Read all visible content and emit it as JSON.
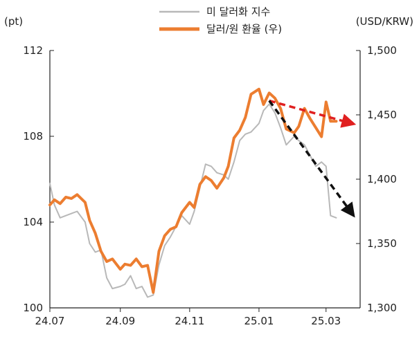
{
  "chart_data": {
    "type": "line",
    "left_unit": "(pt)",
    "right_unit": "(USD/KRW)",
    "x_tick_labels": [
      "24.07",
      "24.09",
      "24.11",
      "25.01",
      "25.03"
    ],
    "x_range": [
      "2024-07-01",
      "2025-03-31"
    ],
    "y_left": {
      "ticks": [
        100,
        104,
        108,
        112
      ],
      "labels": [
        "100",
        "104",
        "108",
        "112"
      ],
      "range": [
        100,
        112
      ]
    },
    "y_right": {
      "ticks": [
        1300,
        1350,
        1400,
        1450,
        1500
      ],
      "labels": [
        "1,300",
        "1,350",
        "1,400",
        "1,450",
        "1,500"
      ],
      "range": [
        1300,
        1500
      ]
    },
    "grid": false,
    "legend_position": "top-center",
    "series": [
      {
        "name": "미 달러화 지수",
        "axis": "left",
        "color": "#b8b8b8",
        "x": [
          "2024-07-01",
          "2024-07-05",
          "2024-07-10",
          "2024-07-15",
          "2024-07-20",
          "2024-07-25",
          "2024-08-01",
          "2024-08-05",
          "2024-08-10",
          "2024-08-15",
          "2024-08-20",
          "2024-08-25",
          "2024-09-01",
          "2024-09-05",
          "2024-09-10",
          "2024-09-15",
          "2024-09-20",
          "2024-09-25",
          "2024-09-30",
          "2024-10-05",
          "2024-10-10",
          "2024-10-15",
          "2024-10-20",
          "2024-10-25",
          "2024-11-01",
          "2024-11-05",
          "2024-11-10",
          "2024-11-15",
          "2024-11-20",
          "2024-11-25",
          "2024-12-01",
          "2024-12-05",
          "2024-12-10",
          "2024-12-15",
          "2024-12-20",
          "2024-12-25",
          "2025-01-01",
          "2025-01-05",
          "2025-01-10",
          "2025-01-15",
          "2025-01-20",
          "2025-01-25",
          "2025-02-01",
          "2025-02-05",
          "2025-02-10",
          "2025-02-15",
          "2025-02-20",
          "2025-02-25",
          "2025-03-01",
          "2025-03-05",
          "2025-03-10"
        ],
        "values": [
          105.8,
          104.8,
          104.2,
          104.3,
          104.4,
          104.5,
          104.0,
          103.0,
          102.6,
          102.7,
          101.4,
          100.9,
          101.0,
          101.1,
          101.5,
          100.9,
          101.0,
          100.5,
          100.6,
          102.0,
          102.9,
          103.3,
          103.8,
          104.3,
          103.9,
          104.5,
          105.6,
          106.7,
          106.6,
          106.3,
          106.2,
          106.0,
          106.8,
          107.8,
          108.1,
          108.2,
          108.6,
          109.2,
          109.5,
          109.1,
          108.4,
          107.6,
          108.0,
          107.8,
          107.6,
          107.1,
          106.6,
          106.8,
          106.6,
          104.3,
          104.2
        ]
      },
      {
        "name": "달러/원 환율 (우)",
        "axis": "right",
        "color": "#ec7d30",
        "x": [
          "2024-07-01",
          "2024-07-05",
          "2024-07-10",
          "2024-07-15",
          "2024-07-20",
          "2024-07-25",
          "2024-08-01",
          "2024-08-05",
          "2024-08-10",
          "2024-08-15",
          "2024-08-20",
          "2024-08-25",
          "2024-09-01",
          "2024-09-05",
          "2024-09-10",
          "2024-09-15",
          "2024-09-20",
          "2024-09-25",
          "2024-09-30",
          "2024-10-05",
          "2024-10-10",
          "2024-10-15",
          "2024-10-20",
          "2024-10-25",
          "2024-11-01",
          "2024-11-05",
          "2024-11-10",
          "2024-11-15",
          "2024-11-20",
          "2024-11-25",
          "2024-12-01",
          "2024-12-05",
          "2024-12-10",
          "2024-12-15",
          "2024-12-20",
          "2024-12-25",
          "2025-01-01",
          "2025-01-05",
          "2025-01-10",
          "2025-01-15",
          "2025-01-20",
          "2025-01-25",
          "2025-02-01",
          "2025-02-05",
          "2025-02-10",
          "2025-02-15",
          "2025-02-20",
          "2025-02-25",
          "2025-03-01",
          "2025-03-05",
          "2025-03-10"
        ],
        "values": [
          1380,
          1384,
          1381,
          1386,
          1385,
          1388,
          1382,
          1368,
          1358,
          1344,
          1336,
          1338,
          1330,
          1334,
          1333,
          1338,
          1332,
          1333,
          1312,
          1344,
          1356,
          1361,
          1363,
          1374,
          1382,
          1378,
          1396,
          1402,
          1399,
          1393,
          1401,
          1410,
          1432,
          1438,
          1448,
          1466,
          1470,
          1458,
          1467,
          1463,
          1455,
          1439,
          1436,
          1441,
          1455,
          1447,
          1440,
          1433,
          1460,
          1445,
          1445
        ]
      }
    ],
    "annotations": [
      {
        "type": "arrow",
        "style": "dashed",
        "color": "#e02020",
        "from": {
          "x": "2025-01-10",
          "y": 1461
        },
        "to": {
          "x": "2025-03-25",
          "y": 1443
        },
        "axis": "right"
      },
      {
        "type": "arrow",
        "style": "dashed",
        "color": "#111111",
        "from": {
          "x": "2025-01-10",
          "y": 1461
        },
        "to": {
          "x": "2025-03-25",
          "y": 1372
        },
        "axis": "right"
      }
    ]
  }
}
